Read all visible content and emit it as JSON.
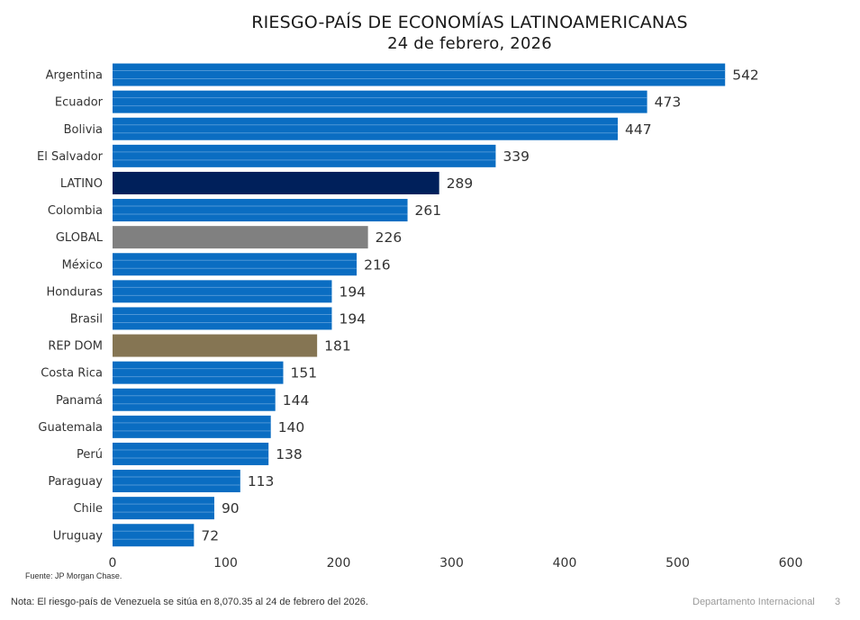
{
  "chart_data": {
    "type": "bar",
    "orientation": "horizontal",
    "title": "RIESGO-PAÍS DE ECONOMÍAS LATINOAMERICANAS",
    "subtitle": "24 de febrero, 2026",
    "categories": [
      "Argentina",
      "Ecuador",
      "Bolivia",
      "El Salvador",
      "LATINO",
      "Colombia",
      "GLOBAL",
      "México",
      "Honduras",
      "Brasil",
      "REP DOM",
      "Costa Rica",
      "Panamá",
      "Guatemala",
      "Perú",
      "Paraguay",
      "Chile",
      "Uruguay"
    ],
    "values": [
      542,
      473,
      447,
      339,
      289,
      261,
      226,
      216,
      194,
      194,
      181,
      151,
      144,
      140,
      138,
      113,
      90,
      72
    ],
    "bar_colors": [
      "#0a6dc2",
      "#0a6dc2",
      "#0a6dc2",
      "#0a6dc2",
      "#00205b",
      "#0a6dc2",
      "#808080",
      "#0a6dc2",
      "#0a6dc2",
      "#0a6dc2",
      "#857553",
      "#0a6dc2",
      "#0a6dc2",
      "#0a6dc2",
      "#0a6dc2",
      "#0a6dc2",
      "#0a6dc2",
      "#0a6dc2"
    ],
    "xlim": [
      0,
      600
    ],
    "xticks": [
      0,
      100,
      200,
      300,
      400,
      500,
      600
    ],
    "grid": false,
    "legend": "none"
  },
  "source": "Fuente: JP Morgan Chase.",
  "footnote": "Nota: El riesgo-país de Venezuela se sitúa en 8,070.35 al 24 de febrero del 2026.",
  "department": "Departamento Internacional",
  "page_number": "3"
}
